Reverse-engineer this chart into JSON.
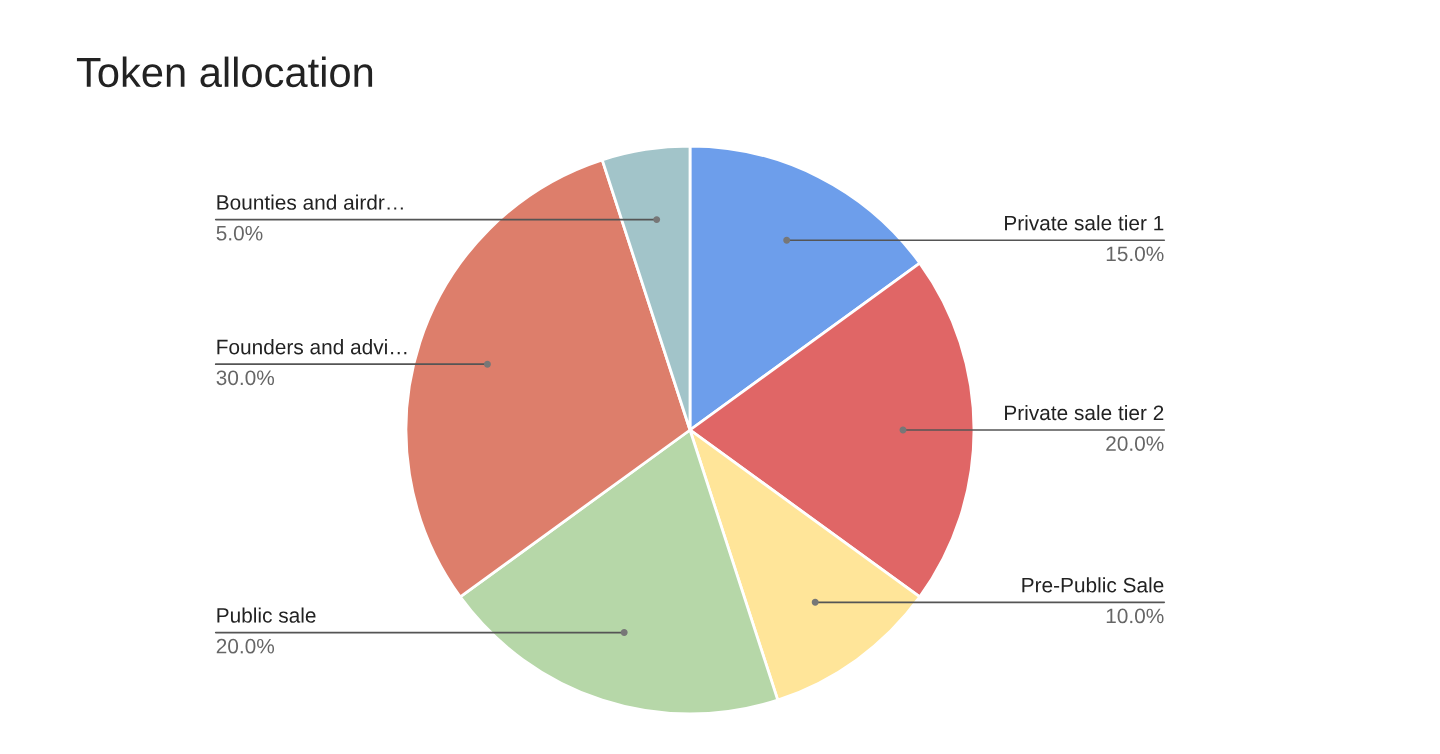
{
  "chart_data": {
    "type": "pie",
    "title": "Token allocation",
    "categories": [
      "Private sale tier 1",
      "Private sale tier 2",
      "Pre-Public Sale",
      "Public sale",
      "Founders and advi…",
      "Bounties and airdr…"
    ],
    "values": [
      15,
      20,
      10,
      20,
      30,
      5
    ],
    "value_labels": [
      "15.0%",
      "20.0%",
      "10.0%",
      "20.0%",
      "30.0%",
      "5.0%"
    ],
    "colors": [
      "#6d9eeb",
      "#e06666",
      "#ffe599",
      "#b6d7a8",
      "#dd7e6b",
      "#a2c4c9"
    ],
    "legend": false
  }
}
